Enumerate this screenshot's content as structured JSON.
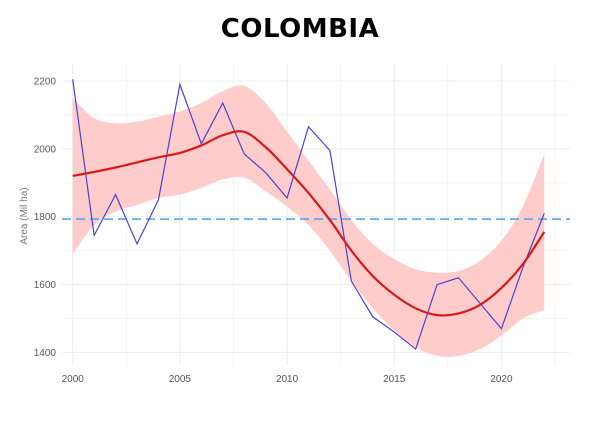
{
  "chart_data": {
    "type": "line",
    "title": "COLOMBIA",
    "xlabel": "",
    "ylabel": "Area (Mil ha)",
    "xlim": [
      1999.5,
      2023.2
    ],
    "ylim": [
      1360,
      2250
    ],
    "x_ticks": [
      2000,
      2005,
      2010,
      2015,
      2020
    ],
    "y_ticks": [
      1400,
      1600,
      1800,
      2000,
      2200
    ],
    "grid": true,
    "legend": "none",
    "colors": {
      "observed": "#4b3fd9",
      "trend": "#d61a1a",
      "band": "#ffc9c9",
      "mean": "#5aa6e0"
    },
    "observed": {
      "x": [
        2000,
        2001,
        2002,
        2003,
        2004,
        2005,
        2006,
        2007,
        2008,
        2009,
        2010,
        2011,
        2012,
        2013,
        2014,
        2015,
        2016,
        2017,
        2018,
        2019,
        2020,
        2021,
        2022
      ],
      "y": [
        2205,
        1745,
        1865,
        1720,
        1850,
        2190,
        2015,
        2135,
        1985,
        1930,
        1855,
        2065,
        1995,
        1610,
        1505,
        1460,
        1410,
        1600,
        1620,
        1545,
        1470,
        1650,
        1810
      ]
    },
    "trend": {
      "x": [
        2000,
        2001,
        2002,
        2003,
        2004,
        2005,
        2006,
        2007,
        2008,
        2009,
        2010,
        2011,
        2012,
        2013,
        2014,
        2015,
        2016,
        2017,
        2018,
        2019,
        2020,
        2021,
        2022
      ],
      "y": [
        1920,
        1932,
        1945,
        1960,
        1975,
        1988,
        2010,
        2040,
        2050,
        2005,
        1940,
        1870,
        1790,
        1700,
        1625,
        1570,
        1530,
        1510,
        1515,
        1540,
        1590,
        1660,
        1755
      ]
    },
    "band": {
      "x": [
        2000,
        2001,
        2002,
        2003,
        2004,
        2005,
        2006,
        2007,
        2008,
        2009,
        2010,
        2011,
        2012,
        2013,
        2014,
        2015,
        2016,
        2017,
        2018,
        2019,
        2020,
        2021,
        2022
      ],
      "upper": [
        2150,
        2090,
        2075,
        2080,
        2095,
        2110,
        2135,
        2170,
        2185,
        2135,
        2050,
        1965,
        1880,
        1790,
        1720,
        1675,
        1645,
        1635,
        1640,
        1670,
        1730,
        1830,
        1985
      ],
      "lower": [
        1690,
        1775,
        1815,
        1835,
        1855,
        1865,
        1885,
        1910,
        1915,
        1875,
        1830,
        1775,
        1700,
        1610,
        1530,
        1465,
        1415,
        1390,
        1390,
        1410,
        1450,
        1500,
        1525
      ]
    },
    "mean_line": 1793
  }
}
